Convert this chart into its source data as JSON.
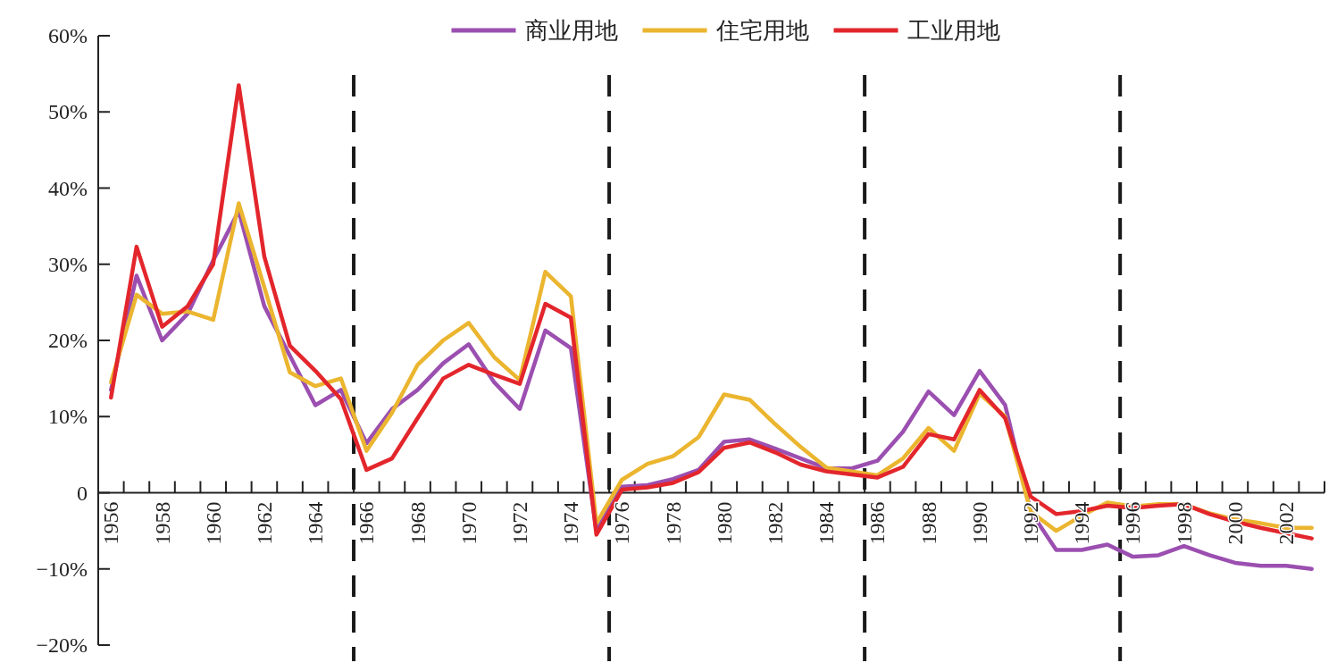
{
  "chart_data": {
    "type": "line",
    "legend": "top",
    "line_style": "solid",
    "x": [
      1956,
      1957,
      1958,
      1959,
      1960,
      1961,
      1962,
      1963,
      1964,
      1965,
      1966,
      1967,
      1968,
      1969,
      1970,
      1971,
      1972,
      1973,
      1974,
      1975,
      1976,
      1977,
      1978,
      1979,
      1980,
      1981,
      1982,
      1983,
      1984,
      1985,
      1986,
      1987,
      1988,
      1989,
      1990,
      1991,
      1992,
      1993,
      1994,
      1995,
      1996,
      1997,
      1998,
      1999,
      2000,
      2001,
      2002,
      2003
    ],
    "series": [
      {
        "name": "商业用地",
        "color": "#9b4fb0",
        "values": [
          13.5,
          28.5,
          20,
          23.5,
          30.5,
          37,
          24.5,
          18,
          11.5,
          13.5,
          6.5,
          11,
          13.5,
          17,
          19.5,
          14.5,
          11,
          21.3,
          19,
          -5,
          0.8,
          1,
          1.8,
          3,
          6.7,
          7,
          5.8,
          4.5,
          3.2,
          3.2,
          4.2,
          8,
          13.3,
          10.2,
          16,
          11.5,
          -2.5,
          -7.5,
          -7.5,
          -6.8,
          -8.4,
          -8.2,
          -7,
          -8.2,
          -9.2,
          -9.6,
          -9.6,
          -10
        ]
      },
      {
        "name": "住宅用地",
        "color": "#ebb52f",
        "values": [
          14.5,
          26,
          23.5,
          23.8,
          22.7,
          38,
          27,
          15.8,
          14,
          15,
          5.5,
          10.5,
          16.8,
          20,
          22.3,
          17.8,
          14.8,
          29,
          25.8,
          -4,
          1.7,
          3.8,
          4.8,
          7.3,
          12.9,
          12.2,
          9,
          6,
          3.3,
          2.8,
          2.3,
          4.5,
          8.5,
          5.5,
          13,
          10,
          -2.5,
          -5,
          -3,
          -1.3,
          -1.8,
          -1.5,
          -1.5,
          -2.7,
          -3.5,
          -4,
          -4.6,
          -4.6
        ]
      },
      {
        "name": "工业用地",
        "color": "#e3262c",
        "values": [
          12.5,
          32.3,
          21.8,
          24.5,
          30,
          53.5,
          31,
          19.3,
          16,
          12.3,
          3,
          4.5,
          9.8,
          15,
          16.8,
          15.5,
          14.3,
          24.8,
          23,
          -5.5,
          0.4,
          0.7,
          1.3,
          2.7,
          5.9,
          6.6,
          5.3,
          3.7,
          2.8,
          2.4,
          2,
          3.4,
          7.7,
          7,
          13.5,
          9.8,
          -0.5,
          -2.8,
          -2.4,
          -1.7,
          -2,
          -1.7,
          -1.5,
          -2.8,
          -3.8,
          -4.6,
          -5.3,
          -6
        ]
      }
    ],
    "xlim": [
      1955.5,
      2003.5
    ],
    "xticks": [
      {
        "value": 1956,
        "label": "1956"
      },
      {
        "value": 1958,
        "label": "1958"
      },
      {
        "value": 1960,
        "label": "1960"
      },
      {
        "value": 1962,
        "label": "1962"
      },
      {
        "value": 1964,
        "label": "1964"
      },
      {
        "value": 1966,
        "label": "1966"
      },
      {
        "value": 1968,
        "label": "1968"
      },
      {
        "value": 1970,
        "label": "1970"
      },
      {
        "value": 1972,
        "label": "1972"
      },
      {
        "value": 1974,
        "label": "1974"
      },
      {
        "value": 1976,
        "label": "1976"
      },
      {
        "value": 1978,
        "label": "1978"
      },
      {
        "value": 1980,
        "label": "1980"
      },
      {
        "value": 1982,
        "label": "1982"
      },
      {
        "value": 1984,
        "label": "1984"
      },
      {
        "value": 1986,
        "label": "1986"
      },
      {
        "value": 1988,
        "label": "1988"
      },
      {
        "value": 1990,
        "label": "1990"
      },
      {
        "value": 1992,
        "label": "1992"
      },
      {
        "value": 1994,
        "label": "1994"
      },
      {
        "value": 1996,
        "label": "1996"
      },
      {
        "value": 1998,
        "label": "1998"
      },
      {
        "value": 2000,
        "label": "2000"
      },
      {
        "value": 2002,
        "label": "2002"
      },
      {
        "value": 1956.5,
        "label": null
      },
      {
        "value": 1957.5,
        "label": null
      },
      {
        "value": 1958.5,
        "label": null
      },
      {
        "value": 1959.5,
        "label": null
      },
      {
        "value": 1960.5,
        "label": null
      },
      {
        "value": 1961.5,
        "label": null
      },
      {
        "value": 1962.5,
        "label": null
      },
      {
        "value": 1963.5,
        "label": null
      },
      {
        "value": 1964.5,
        "label": null
      },
      {
        "value": 1965.5,
        "label": null
      },
      {
        "value": 1966.5,
        "label": null
      },
      {
        "value": 1967.5,
        "label": null
      },
      {
        "value": 1968.5,
        "label": null
      },
      {
        "value": 1969.5,
        "label": null
      },
      {
        "value": 1970.5,
        "label": null
      },
      {
        "value": 1971.5,
        "label": null
      },
      {
        "value": 1972.5,
        "label": null
      },
      {
        "value": 1973.5,
        "label": null
      },
      {
        "value": 1974.5,
        "label": null
      },
      {
        "value": 1975.5,
        "label": null
      },
      {
        "value": 1976.5,
        "label": null
      },
      {
        "value": 1977.5,
        "label": null
      },
      {
        "value": 1978.5,
        "label": null
      },
      {
        "value": 1979.5,
        "label": null
      },
      {
        "value": 1980.5,
        "label": null
      },
      {
        "value": 1981.5,
        "label": null
      },
      {
        "value": 1982.5,
        "label": null
      },
      {
        "value": 1983.5,
        "label": null
      },
      {
        "value": 1984.5,
        "label": null
      },
      {
        "value": 1985.5,
        "label": null
      },
      {
        "value": 1986.5,
        "label": null
      },
      {
        "value": 1987.5,
        "label": null
      },
      {
        "value": 1988.5,
        "label": null
      },
      {
        "value": 1989.5,
        "label": null
      },
      {
        "value": 1990.5,
        "label": null
      },
      {
        "value": 1991.5,
        "label": null
      },
      {
        "value": 1992.5,
        "label": null
      },
      {
        "value": 1993.5,
        "label": null
      },
      {
        "value": 1994.5,
        "label": null
      },
      {
        "value": 1995.5,
        "label": null
      },
      {
        "value": 1996.5,
        "label": null
      },
      {
        "value": 1997.5,
        "label": null
      },
      {
        "value": 1998.5,
        "label": null
      },
      {
        "value": 1999.5,
        "label": null
      },
      {
        "value": 2000.5,
        "label": null
      },
      {
        "value": 2001.5,
        "label": null
      },
      {
        "value": 2002.5,
        "label": null
      },
      {
        "value": 2003.5,
        "label": null
      }
    ],
    "ylim": [
      -20,
      60
    ],
    "yticks": [
      {
        "value": -20,
        "label": "−20%"
      },
      {
        "value": -10,
        "label": "−10%"
      },
      0,
      {
        "value": 10,
        "label": "10%"
      },
      {
        "value": 20,
        "label": "20%"
      },
      {
        "value": 30,
        "label": "30%"
      },
      {
        "value": 40,
        "label": "40%"
      },
      {
        "value": 50,
        "label": "50%"
      },
      {
        "value": 60,
        "label": "60%"
      }
    ],
    "ref_lines": [
      {
        "axis": "x",
        "value": 1965.5,
        "color": "#1a1a1a",
        "line_style": "dashed"
      },
      {
        "axis": "x",
        "value": 1975.5,
        "color": "#1a1a1a",
        "line_style": "dashed"
      },
      {
        "axis": "x",
        "value": 1985.5,
        "color": "#1a1a1a",
        "line_style": "dashed"
      },
      {
        "axis": "x",
        "value": 1995.5,
        "color": "#1a1a1a",
        "line_style": "dashed"
      }
    ]
  }
}
